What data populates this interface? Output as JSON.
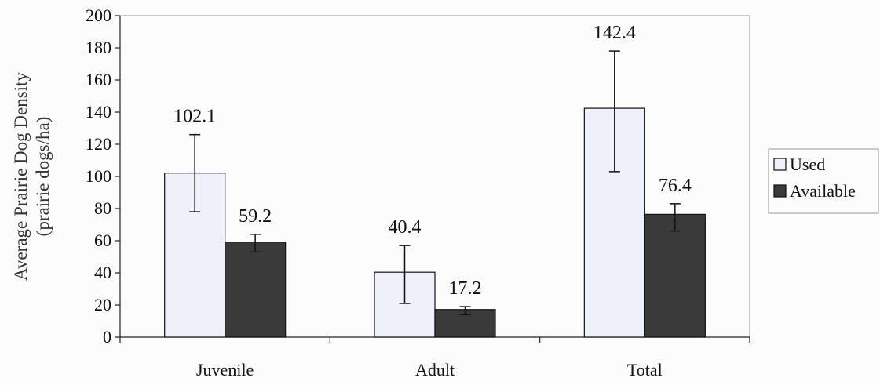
{
  "chart_data": {
    "type": "bar",
    "title": "",
    "xlabel": "",
    "ylabel_lines": [
      "Average Prairie Dog Density",
      "(prairie dogs/ha)"
    ],
    "ylim": [
      0,
      200
    ],
    "yticks": [
      0,
      20,
      40,
      60,
      80,
      100,
      120,
      140,
      160,
      180,
      200
    ],
    "categories": [
      "Juvenile",
      "Adult",
      "Total"
    ],
    "series": [
      {
        "name": "Used",
        "color": "#eef0fa",
        "values": [
          102.1,
          40.4,
          142.4
        ],
        "error_low": [
          78,
          21,
          103
        ],
        "error_high": [
          126,
          57,
          178
        ],
        "labels": [
          "102.1",
          "40.4",
          "142.4"
        ]
      },
      {
        "name": "Available",
        "color": "#3a3a3a",
        "values": [
          59.2,
          17.2,
          76.4
        ],
        "error_low": [
          53,
          14,
          66
        ],
        "error_high": [
          64,
          19,
          83
        ],
        "labels": [
          "59.2",
          "17.2",
          "76.4"
        ]
      }
    ],
    "grid": false,
    "legend_position": "right"
  }
}
